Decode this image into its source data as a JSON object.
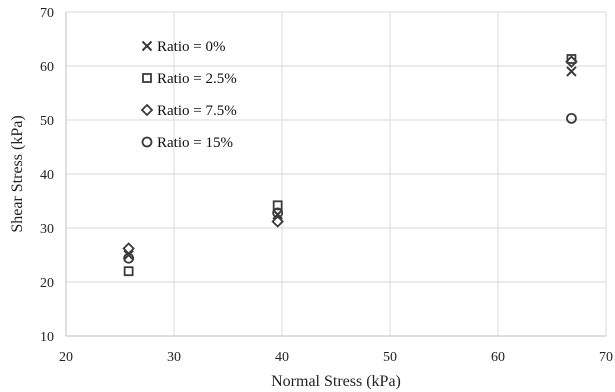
{
  "chart_data": {
    "type": "scatter",
    "xlabel": "Normal Stress (kPa)",
    "ylabel": "Shear Stress (kPa)",
    "xlim": [
      20,
      70
    ],
    "ylim": [
      10,
      70
    ],
    "xticks": [
      20,
      30,
      40,
      50,
      60,
      70
    ],
    "yticks": [
      10,
      20,
      30,
      40,
      50,
      60,
      70
    ],
    "grid": true,
    "legend_position": "top-left",
    "series": [
      {
        "name": "Ratio = 0%",
        "marker": "cross",
        "points": [
          [
            25.8,
            25.0
          ],
          [
            39.6,
            32.5
          ],
          [
            66.8,
            59.0
          ]
        ]
      },
      {
        "name": "Ratio = 2.5%",
        "marker": "square",
        "points": [
          [
            25.8,
            22.0
          ],
          [
            39.6,
            34.2
          ],
          [
            66.8,
            61.3
          ]
        ]
      },
      {
        "name": "Ratio = 7.5%",
        "marker": "diamond",
        "points": [
          [
            25.8,
            26.2
          ],
          [
            39.6,
            31.2
          ],
          [
            66.8,
            60.8
          ]
        ]
      },
      {
        "name": "Ratio = 15%",
        "marker": "circle",
        "points": [
          [
            25.8,
            24.4
          ],
          [
            39.6,
            32.8
          ],
          [
            66.8,
            50.3
          ]
        ]
      }
    ]
  }
}
